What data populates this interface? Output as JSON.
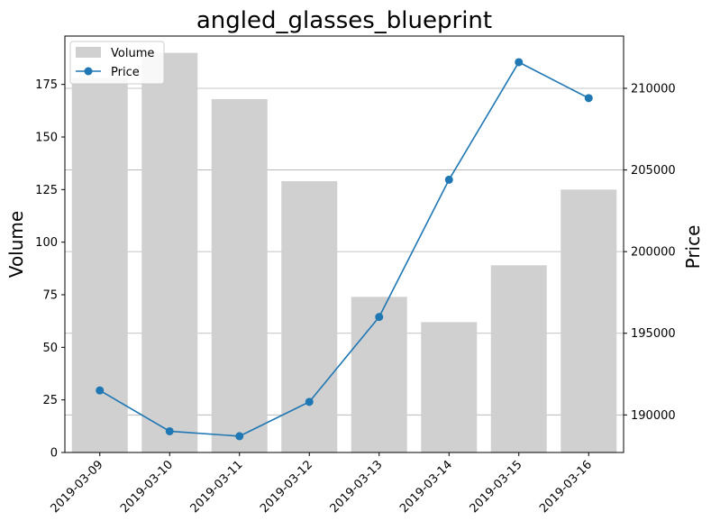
{
  "chart_data": {
    "type": "bar+line",
    "title": "angled_glasses_blueprint",
    "categories": [
      "2019-03-09",
      "2019-03-10",
      "2019-03-11",
      "2019-03-12",
      "2019-03-13",
      "2019-03-14",
      "2019-03-15",
      "2019-03-16"
    ],
    "series": [
      {
        "name": "Volume",
        "type": "bar",
        "axis": "left",
        "color": "#d0d0d0",
        "values": [
          178,
          190,
          168,
          129,
          74,
          62,
          89,
          125
        ]
      },
      {
        "name": "Price",
        "type": "line",
        "axis": "right",
        "color": "#1f77b4",
        "marker": "circle",
        "values": [
          191500,
          189000,
          188700,
          190800,
          196000,
          204400,
          211600,
          209400
        ]
      }
    ],
    "y_left": {
      "label": "Volume",
      "ylim": [
        0,
        198
      ],
      "ticks": [
        0,
        25,
        50,
        75,
        100,
        125,
        150,
        175
      ]
    },
    "y_right": {
      "label": "Price",
      "ylim": [
        187700,
        213200
      ],
      "ticks": [
        190000,
        195000,
        200000,
        205000,
        210000
      ],
      "grid": true
    },
    "xlabel": "",
    "legend": {
      "placement": "upper-left",
      "entries": [
        "Volume",
        "Price"
      ]
    }
  }
}
